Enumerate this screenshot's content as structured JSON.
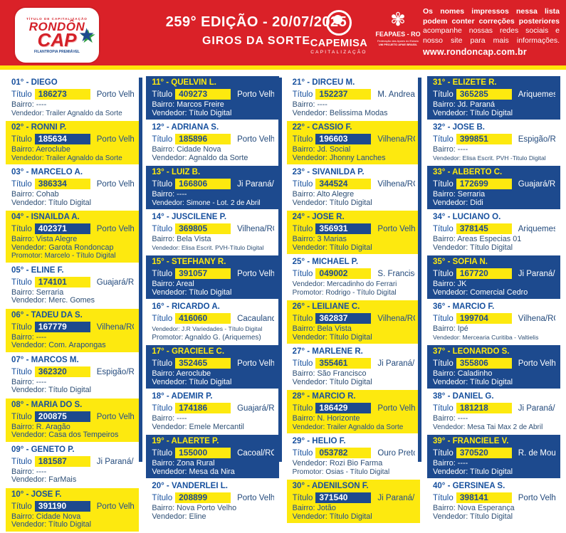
{
  "colors": {
    "header_red": "#da2128",
    "accent_yellow": "#fde90f",
    "brand_blue": "#1d4a8e",
    "text_blue": "#17509e"
  },
  "header": {
    "logo": {
      "top_line": "TÍTULO DE CAPITALIZAÇÃO",
      "brand_top": "RONDÔN",
      "brand_bottom": "CAP",
      "star": "★",
      "tagline": "FILANTROPIA PREMIÁVEL"
    },
    "edition_title": "259° EDIÇÃO - 20/07/2025",
    "subtitle": "GIROS DA SORTE",
    "capemisa": {
      "name": "CAPEMISA",
      "sub": "CAPITALIZAÇÃO"
    },
    "feapaes": {
      "icon": "✾",
      "name": "FEAPAES - RO",
      "sub1": "Federação das Apaes do Estado",
      "sub2": "UM PROJETO APAE BRASIL"
    },
    "notice_lines": [
      "Os nomes impressos nessa lista",
      "podem conter correções posteriores",
      "acompanhe nossas redes sociais e",
      "nosso site para mais informações."
    ],
    "website": "www.rondoncap.com.br"
  },
  "labels": {
    "titulo": "Título"
  },
  "entries": [
    {
      "pos": "01°",
      "name": "DIEGO",
      "titulo": "186273",
      "city": "Porto Velho/RO",
      "lines": [
        "Bairro: ----",
        "Vendedor: Trailer Agnaldo da Sorte"
      ],
      "style": "white"
    },
    {
      "pos": "02°",
      "name": "RONNI P.",
      "titulo": "185634",
      "city": "Porto Velho/RO",
      "lines": [
        "Bairro: Aeroclube",
        "Vendedor: Trailer Agnaldo da Sorte"
      ],
      "style": "yellow"
    },
    {
      "pos": "03°",
      "name": "MARCELO A.",
      "titulo": "386334",
      "city": "Porto Velho/RO",
      "lines": [
        "Bairro: Cohab",
        "Vendedor: Título Digital"
      ],
      "style": "white"
    },
    {
      "pos": "04°",
      "name": "ISNAILDA A.",
      "titulo": "402371",
      "city": "Porto Velho/RO",
      "lines": [
        "Bairro: Vista Alegre",
        "Vendedor: Garota Rondoncap",
        "Promotor: Marcelo - Título Digital"
      ],
      "style": "yellow"
    },
    {
      "pos": "05°",
      "name": "ELINE F.",
      "titulo": "174101",
      "city": "Guajará/RO",
      "lines": [
        "Bairro: Serraria",
        "Vendedor: Merc. Gomes"
      ],
      "style": "white"
    },
    {
      "pos": "06°",
      "name": "TADEU DA S.",
      "titulo": "167779",
      "city": "Vilhena/RO",
      "lines": [
        "Bairro: ----",
        "Vendedor: Com. Arapongas"
      ],
      "style": "yellow"
    },
    {
      "pos": "07°",
      "name": "MARCOS M.",
      "titulo": "362320",
      "city": "Espigão/RO",
      "lines": [
        "Bairro: ----",
        "Vendedor: Título Digital"
      ],
      "style": "white"
    },
    {
      "pos": "08°",
      "name": "MARIA DO S.",
      "titulo": "200875",
      "city": "Porto Velho/RO",
      "lines": [
        "Bairro: R. Aragão",
        "Vendedor: Casa dos Tempeiros"
      ],
      "style": "yellow"
    },
    {
      "pos": "09°",
      "name": "GENETO P.",
      "titulo": "181587",
      "city": "Ji Paraná/RO",
      "lines": [
        "Bairro: ----",
        "Vendedor: FarMais"
      ],
      "style": "white"
    },
    {
      "pos": "10°",
      "name": "JOSE F.",
      "titulo": "391190",
      "city": "Porto Velho/RO",
      "lines": [
        "Bairro: Cidade Nova",
        "Vendedor: Título Digital"
      ],
      "style": "yellow"
    },
    {
      "pos": "11°",
      "name": "QUELVIN L.",
      "titulo": "409273",
      "city": "Porto Velho/RO",
      "lines": [
        "Bairro: Marcos Freire",
        "Vendedor: Título Digital"
      ],
      "style": "blue"
    },
    {
      "pos": "12°",
      "name": "ADRIANA S.",
      "titulo": "185896",
      "city": "Porto Velho/RO",
      "lines": [
        "Bairro: Cidade Nova",
        "Vendedor: Agnaldo da Sorte"
      ],
      "style": "white"
    },
    {
      "pos": "13°",
      "name": "LUIZ B.",
      "titulo": "166806",
      "city": "Ji Paraná/RO",
      "lines": [
        "Bairro: ----",
        "Vendedor: Simone - Lot. 2 de Abril"
      ],
      "style": "blue"
    },
    {
      "pos": "14°",
      "name": "JUSCILENE P.",
      "titulo": "369805",
      "city": "Vilhena/RO",
      "lines": [
        "Bairro: Bela Vista",
        "Vendedor: Elisa Escrit. PVH-Título Digital"
      ],
      "style": "white"
    },
    {
      "pos": "15°",
      "name": "STEFHANY R.",
      "titulo": "391057",
      "city": "Porto Velho/RO",
      "lines": [
        "Bairro: Areal",
        "Vendedor: Título Digital"
      ],
      "style": "blue"
    },
    {
      "pos": "16°",
      "name": "RICARDO A.",
      "titulo": "416060",
      "city": "Cacaulandia/RO",
      "lines": [
        "Vendedor: J.R Variedades - Título Digital",
        "Promotor: Agnaldo G. (Ariquemes)"
      ],
      "style": "white"
    },
    {
      "pos": "17°",
      "name": "GRACIELE C.",
      "titulo": "352465",
      "city": "Porto Velho/RO",
      "lines": [
        "Bairro: Aeroclube",
        "Vendedor: Título Digital"
      ],
      "style": "blue"
    },
    {
      "pos": "18°",
      "name": "ADEMIR P.",
      "titulo": "174186",
      "city": "Guajará/RO",
      "lines": [
        "Bairro: ----",
        "Vendedor: Emele Mercantil"
      ],
      "style": "white"
    },
    {
      "pos": "19°",
      "name": "ALAERTE P.",
      "titulo": "155000",
      "city": "Cacoal/RO",
      "lines": [
        "Bairro: Zona Rural",
        "Vendedor: Mesa da Nira"
      ],
      "style": "blue"
    },
    {
      "pos": "20°",
      "name": "VANDERLEI L.",
      "titulo": "208899",
      "city": "Porto Velho/RO",
      "lines": [
        "Bairro: Nova Porto Velho",
        "Vendedor: Eline"
      ],
      "style": "white"
    },
    {
      "pos": "21°",
      "name": "DIRCEU M.",
      "titulo": "152237",
      "city": "M. Andreazza/RO",
      "lines": [
        "Bairro: ----",
        "Vendedor: Belissima Modas"
      ],
      "style": "white"
    },
    {
      "pos": "22°",
      "name": "CASSIO F.",
      "titulo": "196603",
      "city": "Vilhena/RO",
      "lines": [
        "Bairro: Jd. Social",
        "Vendedor: Jhonny Lanches"
      ],
      "style": "yellow"
    },
    {
      "pos": "23°",
      "name": "SIVANILDA P.",
      "titulo": "344524",
      "city": "Vilhena/RO",
      "lines": [
        "Bairro: Alto Alegre",
        "Vendedor: Título Digital"
      ],
      "style": "white"
    },
    {
      "pos": "24°",
      "name": "JOSE R.",
      "titulo": "356931",
      "city": "Porto Velho/RO",
      "lines": [
        "Bairro: 3 Marias",
        "Vendedor: Título Digital"
      ],
      "style": "yellow"
    },
    {
      "pos": "25°",
      "name": "MICHAEL P.",
      "titulo": "049002",
      "city": "S. Francisco/RO",
      "lines": [
        "Vendedor: Mercadinho do Ferrari",
        "Promotor: Rodrigo - Título Digital"
      ],
      "style": "white"
    },
    {
      "pos": "26°",
      "name": "LEILIANE C.",
      "titulo": "362837",
      "city": "Vilhena/RO",
      "lines": [
        "Bairro: Bela Vista",
        "Vendedor: Título Digital"
      ],
      "style": "yellow"
    },
    {
      "pos": "27°",
      "name": "MARLENE R.",
      "titulo": "355461",
      "city": "Ji Paraná/RO",
      "lines": [
        "Bairro: São Francisco",
        "Vendedor: Título Digital"
      ],
      "style": "white"
    },
    {
      "pos": "28°",
      "name": "MARCIO R.",
      "titulo": "186429",
      "city": "Porto Velho/RO",
      "lines": [
        "Bairro: N. Horizonte",
        "Vendedor: Trailer Agnaldo da Sorte"
      ],
      "style": "yellow"
    },
    {
      "pos": "29°",
      "name": "HELIO F.",
      "titulo": "053782",
      "city": "Ouro Preto/RO",
      "lines": [
        "Vendedor: Rozi Bio Farma",
        "Promotor: Osias - Título Digital"
      ],
      "style": "white"
    },
    {
      "pos": "30°",
      "name": "ADENILSON F.",
      "titulo": "371540",
      "city": "Ji Paraná/RO",
      "lines": [
        "Bairro: Jotão",
        "Vendedor: Título Digital"
      ],
      "style": "yellow"
    },
    {
      "pos": "31°",
      "name": "ELIZETE R.",
      "titulo": "365285",
      "city": "Ariquemes/RO",
      "lines": [
        "Bairro: Jd. Paraná",
        "Vendedor: Título Digital"
      ],
      "style": "blue"
    },
    {
      "pos": "32°",
      "name": "JOSE B.",
      "titulo": "399851",
      "city": "Espigão/RO",
      "lines": [
        "Bairro: ----",
        "Vendedor: Elisa Escrit. PVH -Titulo Digital"
      ],
      "style": "white"
    },
    {
      "pos": "33°",
      "name": "ALBERTO C.",
      "titulo": "172699",
      "city": "Guajará/RO",
      "lines": [
        "Bairro: Serraria",
        "Vendedor: Didi"
      ],
      "style": "blue"
    },
    {
      "pos": "34°",
      "name": "LUCIANO O.",
      "titulo": "378145",
      "city": "Ariquemes/RO",
      "lines": [
        "Bairro: Areas Especias 01",
        "Vendedor: Título Digital"
      ],
      "style": "white"
    },
    {
      "pos": "35°",
      "name": "SOFIA N.",
      "titulo": "167720",
      "city": "Ji Paraná/RO",
      "lines": [
        "Bairro: JK",
        "Vendedor: Comercial Cedro"
      ],
      "style": "blue"
    },
    {
      "pos": "36°",
      "name": "MARCIO F.",
      "titulo": "199704",
      "city": "Vilhena/RO",
      "lines": [
        "Bairro: Ipé",
        "Vendedor: Mercearia Curitiba - Valtielis"
      ],
      "style": "white"
    },
    {
      "pos": "37°",
      "name": "LEONARDO S.",
      "titulo": "355806",
      "city": "Porto Velho/RO",
      "lines": [
        "Bairro: Caladinho",
        "Vendedor: Título Digital"
      ],
      "style": "blue"
    },
    {
      "pos": "38°",
      "name": "DANIEL G.",
      "titulo": "181218",
      "city": "Ji Paraná/RO",
      "lines": [
        "Bairro: ----",
        "Vendedor: Mesa Tai Max 2 de Abril"
      ],
      "style": "white"
    },
    {
      "pos": "39°",
      "name": "FRANCIELE V.",
      "titulo": "370520",
      "city": "R. de Moura/RO",
      "lines": [
        "Bairro: ----",
        "Vendedor: Título Digital"
      ],
      "style": "blue"
    },
    {
      "pos": "40°",
      "name": "GERSINEA S.",
      "titulo": "398141",
      "city": "Porto Velho/RO",
      "lines": [
        "Bairro: Nova Esperança",
        "Vendedor: Título Digital"
      ],
      "style": "white"
    }
  ]
}
